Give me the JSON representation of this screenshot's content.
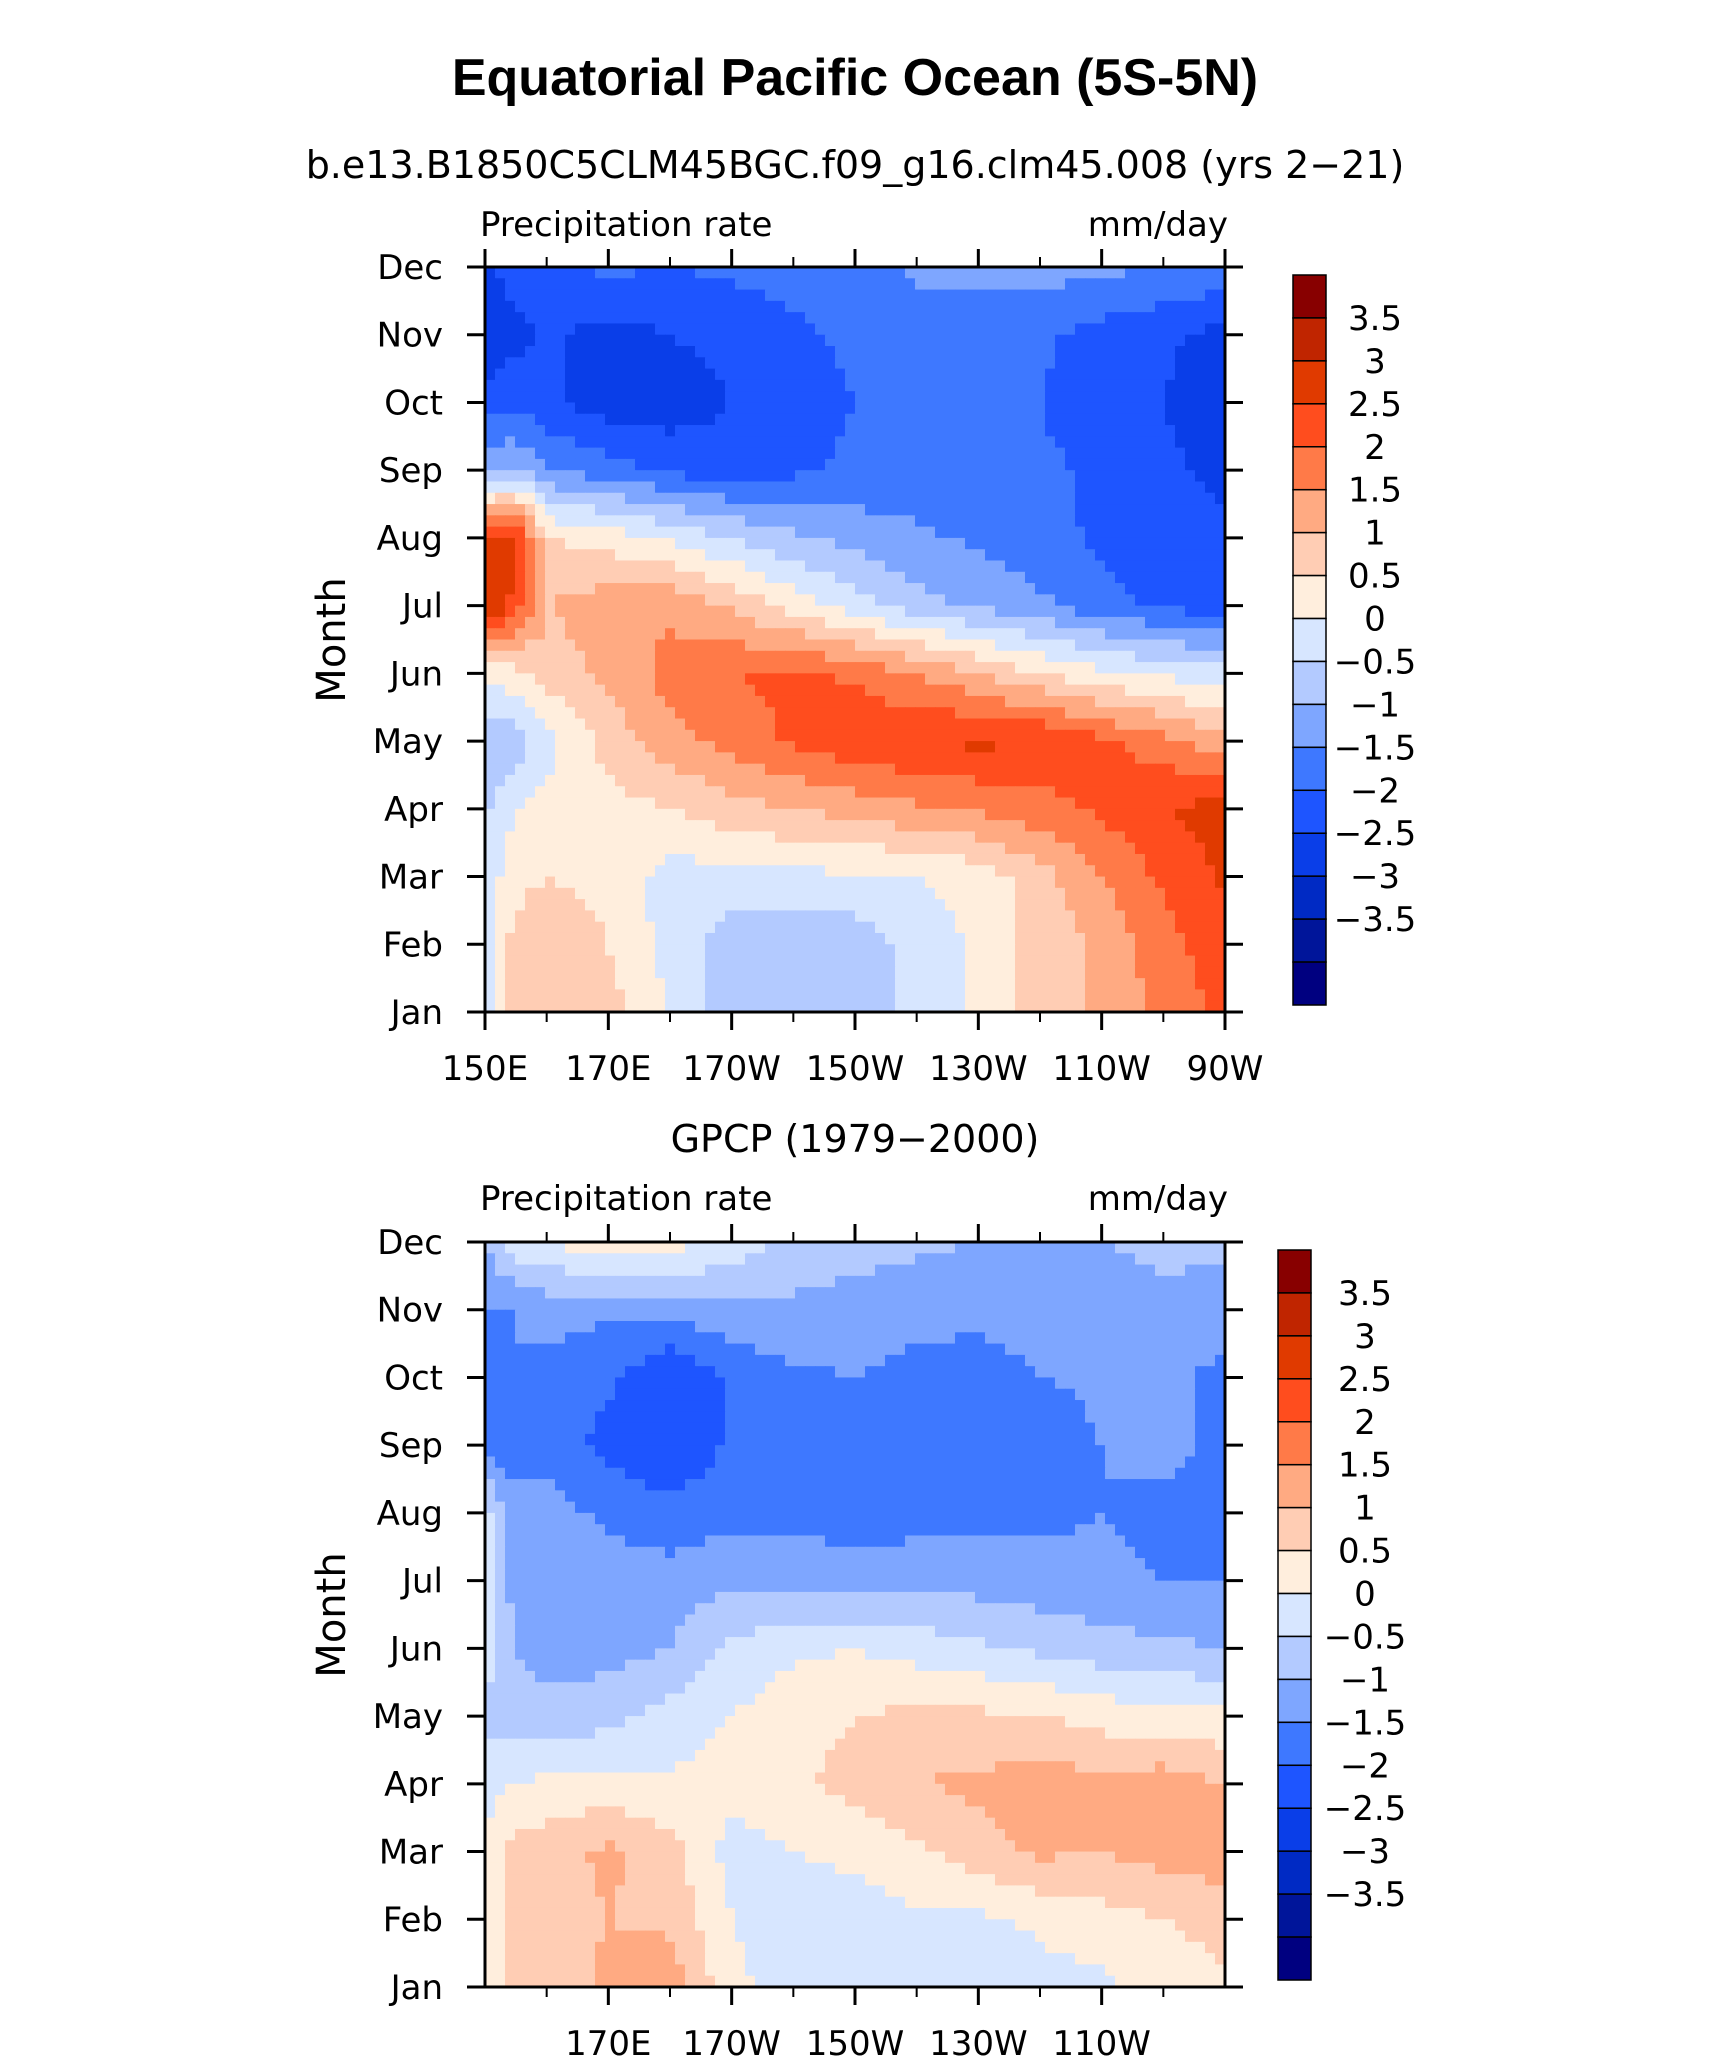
{
  "figure": {
    "title": "Equatorial Pacific Ocean (5S-5N)"
  },
  "chart_data": [
    {
      "type": "heatmap",
      "title": "b.e13.B1850C5CLM45BGC.f09_g16.clm45.008 (yrs 2−21)",
      "left_string": "Precipitation rate",
      "right_string": "mm/day",
      "ylabel": "Month",
      "x_ticklabels": [
        "150E",
        "170E",
        "170W",
        "150W",
        "130W",
        "110W",
        "90W"
      ],
      "xlim": [
        150,
        270
      ],
      "y_ticklabels": [
        "Jan",
        "Feb",
        "Mar",
        "Apr",
        "May",
        "Jun",
        "Jul",
        "Aug",
        "Sep",
        "Oct",
        "Nov",
        "Dec"
      ],
      "colorbar_levels": [
        "3.5",
        "3",
        "2.5",
        "2",
        "1.5",
        "1",
        "0.5",
        "0",
        "−0.5",
        "−1",
        "−1.5",
        "−2",
        "−2.5",
        "−3",
        "−3.5"
      ],
      "x": [
        150,
        155,
        160,
        170,
        180,
        190,
        200,
        210,
        220,
        230,
        240,
        250,
        260,
        270
      ],
      "grid": [
        [
          0.3,
          1.5,
          1.5,
          1.2,
          0.5,
          -0.4,
          -0.5,
          -0.3,
          0.2,
          0.6,
          1.2,
          1.6,
          2.2,
          2.6
        ],
        [
          0.3,
          1.2,
          1.5,
          1.0,
          0.3,
          -0.3,
          -0.4,
          -0.3,
          0.2,
          0.6,
          1.2,
          1.6,
          2.3,
          2.8
        ],
        [
          0.2,
          0.8,
          1.0,
          0.8,
          0.3,
          0.3,
          0.4,
          0.4,
          0.5,
          0.7,
          1.3,
          2.0,
          2.6,
          3.1
        ],
        [
          -0.1,
          0.5,
          0.7,
          0.8,
          1.0,
          1.3,
          1.5,
          1.7,
          1.9,
          2.1,
          2.3,
          2.6,
          3.0,
          3.2
        ],
        [
          -0.4,
          -0.3,
          0.3,
          1.2,
          1.8,
          2.2,
          2.6,
          2.9,
          3.0,
          3.1,
          3.0,
          2.6,
          2.2,
          1.6
        ],
        [
          0.7,
          0.8,
          1.2,
          1.6,
          2.2,
          2.5,
          2.6,
          2.4,
          2.0,
          1.5,
          1.0,
          0.6,
          0.4,
          0.2
        ],
        [
          3.6,
          2.8,
          1.5,
          1.8,
          1.9,
          1.4,
          0.8,
          0.2,
          -0.3,
          -0.6,
          -0.9,
          -1.3,
          -1.6,
          -1.8
        ],
        [
          3.0,
          3.3,
          1.0,
          0.8,
          0.4,
          0.0,
          -0.4,
          -0.7,
          -0.9,
          -1.1,
          -1.3,
          -1.6,
          -1.8,
          -1.9
        ],
        [
          -0.5,
          -0.5,
          -0.9,
          -1.3,
          -1.6,
          -1.8,
          -1.6,
          -1.4,
          -1.3,
          -1.3,
          -1.4,
          -1.6,
          -1.9,
          -2.1
        ],
        [
          -1.8,
          -1.6,
          -1.9,
          -2.3,
          -2.3,
          -2.0,
          -1.7,
          -1.5,
          -1.4,
          -1.4,
          -1.5,
          -1.8,
          -2.0,
          -2.4
        ],
        [
          -2.5,
          -2.2,
          -1.9,
          -2.2,
          -2.0,
          -1.8,
          -1.6,
          -1.4,
          -1.3,
          -1.3,
          -1.4,
          -1.7,
          -1.9,
          -2.2
        ],
        [
          -2.2,
          -1.6,
          -1.6,
          -1.4,
          -1.5,
          -1.4,
          -1.3,
          -1.2,
          -0.9,
          -0.8,
          -0.8,
          -0.9,
          -1.0,
          -1.1
        ]
      ]
    },
    {
      "type": "heatmap",
      "title": "GPCP (1979−2000)",
      "left_string": "Precipitation rate",
      "right_string": "mm/day",
      "ylabel": "Month",
      "x_ticklabels": [
        "170E",
        "170W",
        "150W",
        "130W",
        "110W"
      ],
      "xlim": [
        150,
        270
      ],
      "y_ticklabels": [
        "Jan",
        "Feb",
        "Mar",
        "Apr",
        "May",
        "Jun",
        "Jul",
        "Aug",
        "Sep",
        "Oct",
        "Nov",
        "Dec"
      ],
      "colorbar_levels": [
        "3.5",
        "3",
        "2.5",
        "2",
        "1.5",
        "1",
        "0.5",
        "0",
        "−0.5",
        "−1",
        "−1.5",
        "−2",
        "−2.5",
        "−3",
        "−3.5"
      ],
      "x": [
        150,
        155,
        160,
        170,
        180,
        190,
        200,
        210,
        220,
        230,
        240,
        250,
        260,
        270
      ],
      "grid": [
        [
          0.6,
          1.1,
          1.2,
          1.6,
          1.8,
          0.6,
          0.3,
          0.2,
          0.1,
          0.1,
          0.3,
          0.4,
          0.7,
          0.9
        ],
        [
          0.6,
          1.2,
          1.3,
          1.5,
          1.4,
          0.5,
          0.3,
          0.3,
          0.4,
          0.4,
          0.6,
          0.8,
          1.0,
          1.2
        ],
        [
          0.5,
          1.2,
          1.3,
          1.6,
          1.2,
          0.3,
          0.5,
          0.6,
          0.9,
          1.3,
          1.6,
          1.5,
          1.7,
          1.8
        ],
        [
          0.4,
          0.5,
          0.6,
          0.7,
          0.6,
          0.7,
          0.9,
          1.2,
          1.5,
          1.6,
          1.8,
          1.6,
          1.8,
          1.5
        ],
        [
          -0.2,
          -0.3,
          -0.3,
          -0.2,
          0.2,
          0.5,
          0.8,
          1.0,
          1.1,
          1.1,
          1.0,
          0.8,
          0.7,
          0.6
        ],
        [
          0.3,
          -0.5,
          -0.7,
          -0.7,
          -0.5,
          0.1,
          0.4,
          0.5,
          0.3,
          0.1,
          -0.1,
          -0.3,
          -0.4,
          -0.5
        ],
        [
          0.4,
          -0.8,
          -0.8,
          -0.8,
          -0.8,
          -0.6,
          -0.6,
          -0.7,
          -0.7,
          -0.7,
          -0.8,
          -0.9,
          -1.0,
          -1.0
        ],
        [
          0.2,
          -0.7,
          -0.8,
          -1.1,
          -1.3,
          -1.2,
          -1.2,
          -1.3,
          -1.2,
          -1.2,
          -1.1,
          -1.0,
          -1.1,
          -1.1
        ],
        [
          -1.2,
          -1.4,
          -1.1,
          -1.7,
          -2.0,
          -1.4,
          -1.2,
          -1.4,
          -1.4,
          -1.3,
          -1.3,
          -1.0,
          -0.9,
          -1.1
        ],
        [
          -1.1,
          -1.0,
          -1.2,
          -1.4,
          -2.0,
          -1.4,
          -1.1,
          -1.0,
          -1.2,
          -1.2,
          -1.0,
          -0.9,
          -0.8,
          -1.2
        ],
        [
          -1.0,
          -1.0,
          -0.8,
          -0.9,
          -0.8,
          -0.6,
          -0.6,
          -0.7,
          -0.8,
          -0.9,
          -0.8,
          -0.7,
          -0.6,
          -0.7
        ],
        [
          -0.5,
          0.3,
          0.5,
          0.9,
          0.7,
          0.3,
          -0.2,
          -0.3,
          -0.4,
          -0.5,
          -0.5,
          -0.5,
          -0.4,
          -0.4
        ]
      ]
    }
  ],
  "colors": {
    "levels": [
      "#000080",
      "#00159a",
      "#002ac4",
      "#0a3ee8",
      "#1e55ff",
      "#3e78ff",
      "#7ea6ff",
      "#b3caff",
      "#d7e6ff",
      "#ffeedd",
      "#ffcdb4",
      "#ffaa82",
      "#ff7a48",
      "#ff4d1e",
      "#e03a00",
      "#c02500",
      "#880000"
    ]
  }
}
